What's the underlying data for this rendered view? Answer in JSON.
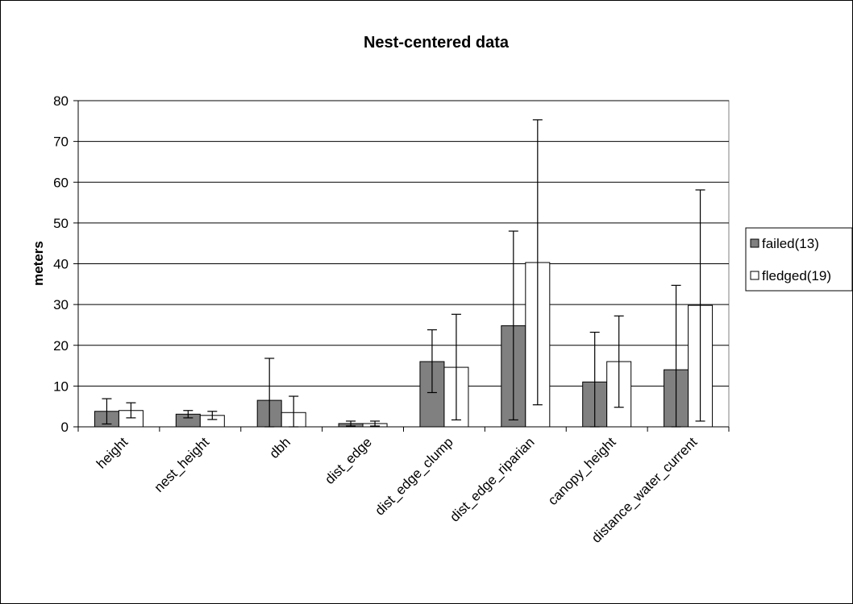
{
  "chart_data": {
    "type": "bar",
    "title": "Nest-centered data",
    "xlabel": "",
    "ylabel": "meters",
    "ylim": [
      0,
      80
    ],
    "yticks": [
      0,
      10,
      20,
      30,
      40,
      50,
      60,
      70,
      80
    ],
    "grid": true,
    "legend_position": "right",
    "categories": [
      "height",
      "nest_height",
      "dbh",
      "dist_edge",
      "dist_edge_clump",
      "dist_edge_riparian",
      "canopy_height",
      "distance_water_current"
    ],
    "series": [
      {
        "name": "failed(13)",
        "color": "#808080",
        "values": [
          3.8,
          3.1,
          6.5,
          0.8,
          16.0,
          24.8,
          11.0,
          14.0
        ],
        "err_low": [
          0.7,
          2.2,
          0,
          0.2,
          8.4,
          1.7,
          0,
          0
        ],
        "err_high": [
          6.9,
          4.0,
          16.8,
          1.4,
          23.8,
          48.0,
          23.2,
          34.7
        ]
      },
      {
        "name": "fledged(19)",
        "color": "#ffffff",
        "values": [
          4.0,
          2.8,
          3.5,
          0.8,
          14.6,
          40.3,
          16.0,
          29.8
        ],
        "err_low": [
          2.2,
          1.8,
          0,
          0.2,
          1.7,
          5.4,
          4.8,
          1.4
        ],
        "err_high": [
          5.9,
          3.8,
          7.5,
          1.4,
          27.6,
          75.3,
          27.2,
          58.1
        ]
      }
    ]
  }
}
